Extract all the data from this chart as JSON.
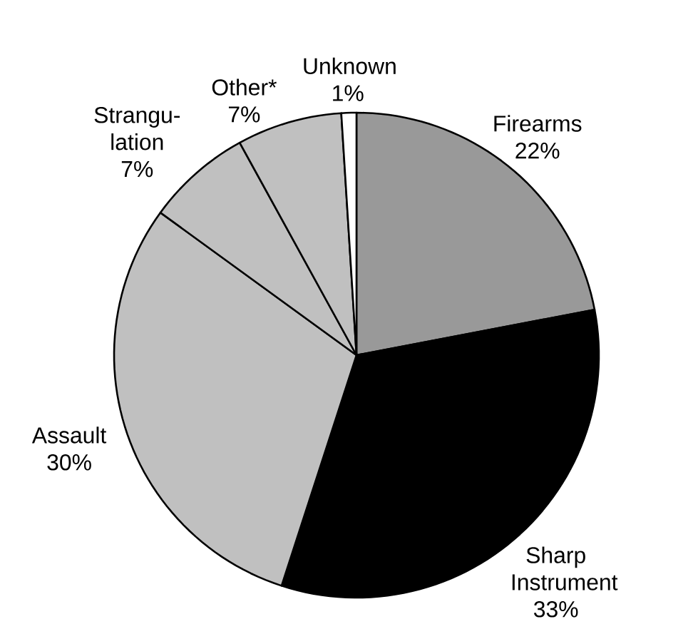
{
  "chart_data": {
    "type": "pie",
    "categories": [
      "Firearms",
      "Sharp Instrument",
      "Assault",
      "Strangu-lation",
      "Other*",
      "Unknown"
    ],
    "values": [
      22,
      33,
      30,
      7,
      7,
      1
    ],
    "value_labels": [
      "22%",
      "33%",
      "30%",
      "7%",
      "7%",
      "1%"
    ],
    "colors": [
      "#999999",
      "#000000",
      "#c0c0c0",
      "#c0c0c0",
      "#c0c0c0",
      "#ffffff"
    ]
  }
}
